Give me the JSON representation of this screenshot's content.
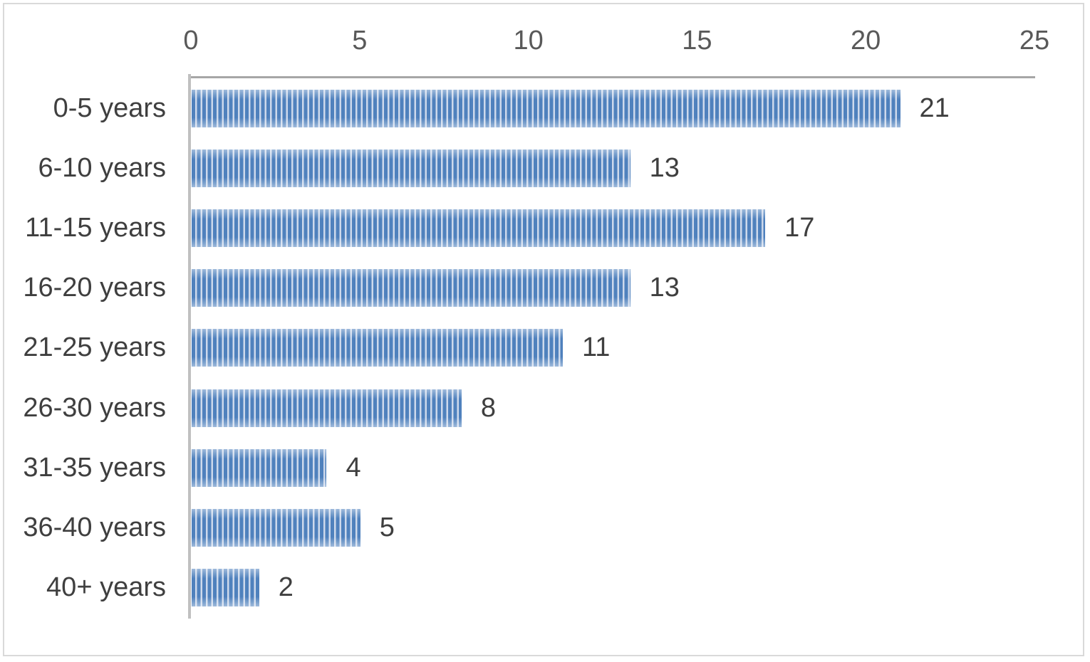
{
  "figure": {
    "background": "#ffffff",
    "border_color": "#d9d9d9"
  },
  "chart_data": {
    "type": "bar",
    "orientation": "horizontal",
    "title": "",
    "xlabel": "",
    "ylabel": "",
    "categories": [
      "0-5 years",
      "6-10 years",
      "11-15 years",
      "16-20 years",
      "21-25 years",
      "26-30 years",
      "31-35 years",
      "36-40 years",
      "40+ years"
    ],
    "values": [
      21,
      13,
      17,
      13,
      11,
      8,
      4,
      5,
      2
    ],
    "xlim": [
      0,
      25
    ],
    "x_ticks": [
      0,
      5,
      10,
      15,
      20,
      25
    ],
    "x_tick_labels": [
      "0",
      "5",
      "10",
      "15",
      "20",
      "25"
    ],
    "tick_axis_position": "top",
    "grid": false,
    "legend": false,
    "data_labels_shown": true,
    "bar_pattern": "vertical-stripes",
    "bar_stripe_color": "#4f81bd",
    "bar_stripe_background": "#cdd9ec",
    "value_axis_line_color": "#a6a6a6",
    "category_axis_line_color": "#c0c0c0",
    "tick_label_color": "#595959",
    "label_color": "#3f3f3f"
  }
}
